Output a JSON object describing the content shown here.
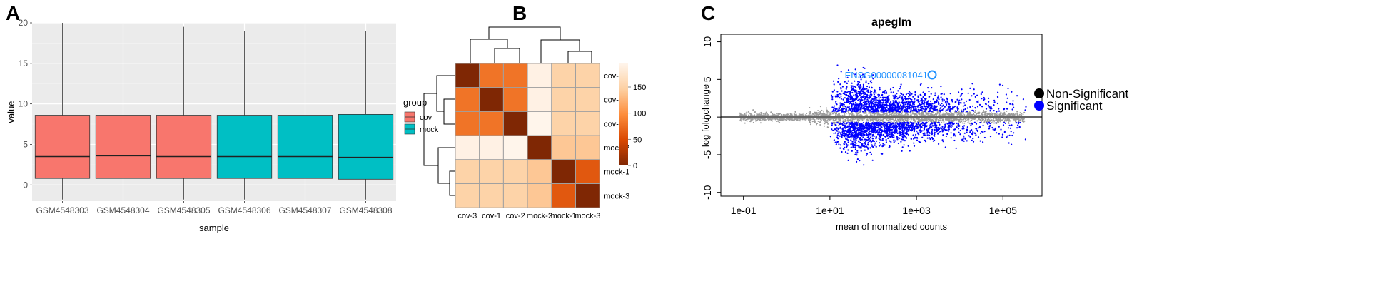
{
  "panels": {
    "a": "A",
    "b": "B",
    "c": "C"
  },
  "chart_data": [
    {
      "type": "box",
      "xlabel": "sample",
      "ylabel": "value",
      "ylim": [
        -2,
        20
      ],
      "y_ticks": [
        0,
        5,
        10,
        15,
        20
      ],
      "grid": true,
      "legend": {
        "title": "group",
        "entries": [
          "cov",
          "mock"
        ],
        "colors": [
          "#F8766D",
          "#00BFC4"
        ],
        "placement": "right"
      },
      "categories": [
        "GSM4548303",
        "GSM4548304",
        "GSM4548305",
        "GSM4548306",
        "GSM4548307",
        "GSM4548308"
      ],
      "groups": [
        "cov",
        "cov",
        "cov",
        "mock",
        "mock",
        "mock"
      ],
      "boxes": [
        {
          "min": -1.8,
          "q1": 0.8,
          "median": 3.5,
          "q3": 8.6,
          "max": 20
        },
        {
          "min": -1.8,
          "q1": 0.8,
          "median": 3.6,
          "q3": 8.6,
          "max": 19.5
        },
        {
          "min": -1.8,
          "q1": 0.8,
          "median": 3.5,
          "q3": 8.6,
          "max": 19.5
        },
        {
          "min": -1.8,
          "q1": 0.8,
          "median": 3.5,
          "q3": 8.6,
          "max": 19.0
        },
        {
          "min": -1.8,
          "q1": 0.8,
          "median": 3.5,
          "q3": 8.6,
          "max": 19.0
        },
        {
          "min": -1.8,
          "q1": 0.7,
          "median": 3.4,
          "q3": 8.7,
          "max": 19.0
        }
      ]
    },
    {
      "type": "heatmap",
      "row_labels": [
        "cov-3",
        "cov-1",
        "cov-2",
        "mock-2",
        "mock-1",
        "mock-3"
      ],
      "col_labels": [
        "cov-3",
        "cov-1",
        "cov-2",
        "mock-2",
        "mock-1",
        "mock-3"
      ],
      "values": [
        [
          0,
          80,
          80,
          190,
          150,
          150
        ],
        [
          80,
          0,
          80,
          190,
          150,
          150
        ],
        [
          80,
          80,
          0,
          195,
          150,
          150
        ],
        [
          190,
          190,
          195,
          0,
          140,
          140
        ],
        [
          150,
          150,
          150,
          140,
          0,
          60
        ],
        [
          150,
          150,
          150,
          140,
          60,
          0
        ]
      ],
      "colorbar": {
        "ticks": [
          0,
          50,
          100,
          150
        ],
        "range": [
          0,
          195
        ]
      },
      "colorscale": [
        "#7f2704",
        "#d94801",
        "#fd8d3c",
        "#fdd0a2",
        "#fff5eb"
      ],
      "grid_color": "#a0a0a0"
    },
    {
      "type": "scatter",
      "title": "apeglm",
      "xlabel": "mean of normalized counts",
      "ylabel": "log fold change",
      "x_scale": "log",
      "xlim": [
        0.03,
        800000
      ],
      "ylim": [
        -10.5,
        11
      ],
      "x_ticks": [
        0.1,
        10,
        1000,
        100000
      ],
      "x_tick_labels": [
        "1e-01",
        "1e+01",
        "1e+03",
        "1e+05"
      ],
      "y_ticks": [
        -10,
        -5,
        0,
        5,
        10
      ],
      "legend": {
        "entries": [
          "Non-Significant",
          "Significant"
        ],
        "colors": [
          "#000000",
          "#0000ff"
        ],
        "placement": "right"
      },
      "annotation": {
        "text": "ENSG00000081041",
        "x": 2300,
        "y": 5.6
      },
      "highlight_colors": {
        "nonsig": "#9c9c9c",
        "sig": "#0000ff",
        "baseline": "#666666",
        "annotation": "#1e90ff"
      }
    }
  ]
}
